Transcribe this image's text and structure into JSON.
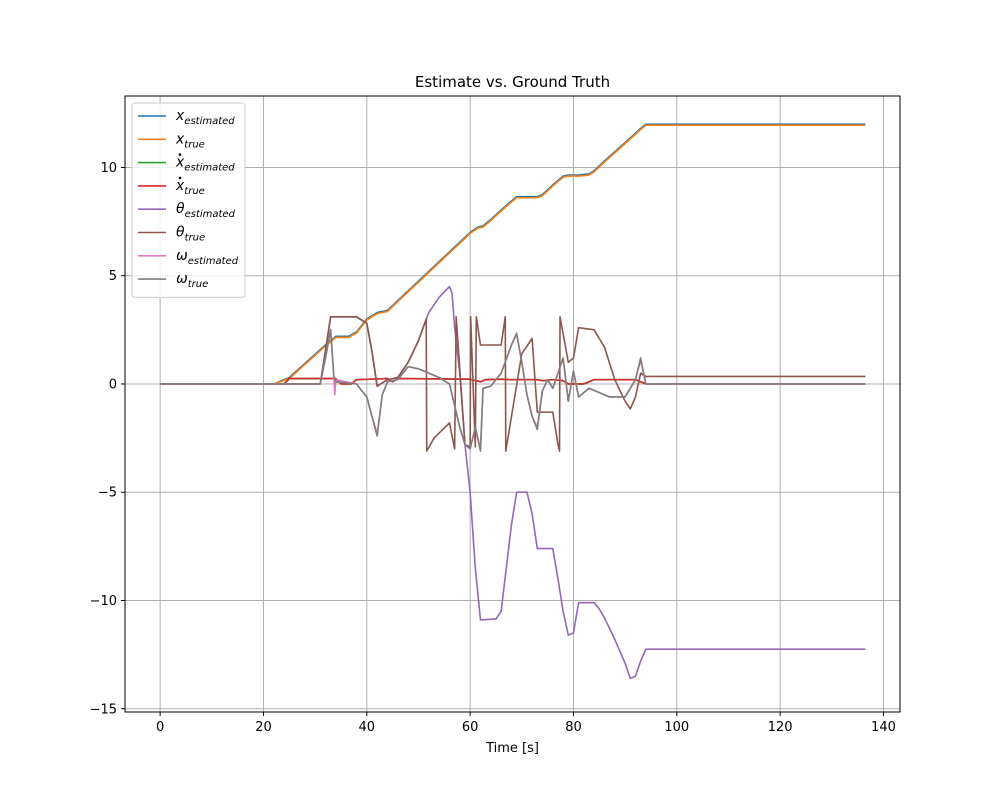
{
  "chart_data": {
    "type": "line",
    "title": "Estimate vs. Ground Truth",
    "xlabel": "Time [s]",
    "ylabel": "",
    "xlim": [
      -6.8,
      143.2
    ],
    "ylim": [
      -15.15,
      13.3
    ],
    "xticks": [
      0,
      20,
      40,
      60,
      80,
      100,
      120,
      140
    ],
    "xtick_labels": [
      "0",
      "20",
      "40",
      "60",
      "80",
      "100",
      "120",
      "140"
    ],
    "yticks": [
      -15,
      -10,
      -5,
      0,
      5,
      10
    ],
    "ytick_labels": [
      "−15",
      "−10",
      "−5",
      "0",
      "5",
      "10"
    ],
    "grid": true,
    "legend_position": "top-left",
    "series": [
      {
        "name": "x_estimated",
        "legend_main": "x",
        "legend_dot": false,
        "legend_sub": "estimated",
        "color": "#1f77b4",
        "points": [
          [
            0,
            0
          ],
          [
            22,
            0
          ],
          [
            25,
            0.3
          ],
          [
            32,
            1.8
          ],
          [
            34,
            2.2
          ],
          [
            36.5,
            2.2
          ],
          [
            38,
            2.4
          ],
          [
            40,
            3.0
          ],
          [
            42,
            3.3
          ],
          [
            44,
            3.4
          ],
          [
            48,
            4.3
          ],
          [
            56,
            6.1
          ],
          [
            60,
            7.0
          ],
          [
            61.5,
            7.25
          ],
          [
            62.5,
            7.3
          ],
          [
            64,
            7.6
          ],
          [
            67,
            8.25
          ],
          [
            69,
            8.65
          ],
          [
            70,
            8.65
          ],
          [
            73,
            8.65
          ],
          [
            74,
            8.75
          ],
          [
            76.5,
            9.3
          ],
          [
            78,
            9.6
          ],
          [
            79,
            9.65
          ],
          [
            81,
            9.65
          ],
          [
            83,
            9.7
          ],
          [
            84,
            9.85
          ],
          [
            86,
            10.3
          ],
          [
            90,
            11.15
          ],
          [
            93,
            11.8
          ],
          [
            94,
            12.0
          ],
          [
            136.5,
            12.0
          ]
        ]
      },
      {
        "name": "x_true",
        "legend_main": "x",
        "legend_dot": false,
        "legend_sub": "true",
        "color": "#ff7f0e",
        "points": [
          [
            0,
            0
          ],
          [
            22,
            0
          ],
          [
            25,
            0.25
          ],
          [
            32,
            1.75
          ],
          [
            34,
            2.15
          ],
          [
            36.5,
            2.15
          ],
          [
            38,
            2.35
          ],
          [
            40,
            2.95
          ],
          [
            42,
            3.25
          ],
          [
            44,
            3.35
          ],
          [
            48,
            4.25
          ],
          [
            56,
            6.05
          ],
          [
            60,
            6.95
          ],
          [
            61.5,
            7.2
          ],
          [
            62.5,
            7.25
          ],
          [
            64,
            7.55
          ],
          [
            67,
            8.2
          ],
          [
            69,
            8.6
          ],
          [
            70,
            8.6
          ],
          [
            73,
            8.6
          ],
          [
            74,
            8.7
          ],
          [
            76.5,
            9.25
          ],
          [
            78,
            9.55
          ],
          [
            79,
            9.6
          ],
          [
            81,
            9.6
          ],
          [
            83,
            9.65
          ],
          [
            84,
            9.8
          ],
          [
            86,
            10.25
          ],
          [
            90,
            11.1
          ],
          [
            93,
            11.75
          ],
          [
            94,
            11.95
          ],
          [
            136.5,
            11.95
          ]
        ]
      },
      {
        "name": "xdot_estimated",
        "legend_main": "x",
        "legend_dot": true,
        "legend_sub": "estimated",
        "color": "#2ca02c",
        "points": [
          [
            0,
            0
          ],
          [
            24,
            0
          ],
          [
            25,
            0.25
          ],
          [
            34,
            0.25
          ],
          [
            35,
            0
          ],
          [
            37,
            0
          ],
          [
            38,
            0.2
          ],
          [
            44,
            0.25
          ],
          [
            45,
            0.1
          ],
          [
            46,
            0.25
          ],
          [
            60,
            0.22
          ],
          [
            62,
            0.1
          ],
          [
            63,
            0.2
          ],
          [
            66,
            0.22
          ],
          [
            68,
            0.2
          ],
          [
            69,
            0.2
          ],
          [
            73,
            0.2
          ],
          [
            74,
            0.15
          ],
          [
            76,
            0.2
          ],
          [
            78,
            0.15
          ],
          [
            79,
            0
          ],
          [
            82,
            0
          ],
          [
            84,
            0.2
          ],
          [
            92,
            0.2
          ],
          [
            94,
            0
          ],
          [
            136.5,
            0
          ]
        ]
      },
      {
        "name": "xdot_true",
        "legend_main": "x",
        "legend_dot": true,
        "legend_sub": "true",
        "color": "#d62728",
        "points": [
          [
            0,
            0
          ],
          [
            24,
            0
          ],
          [
            25,
            0.25
          ],
          [
            34,
            0.25
          ],
          [
            35,
            0
          ],
          [
            37,
            0
          ],
          [
            38,
            0.2
          ],
          [
            44,
            0.25
          ],
          [
            45,
            0.1
          ],
          [
            46,
            0.25
          ],
          [
            60,
            0.22
          ],
          [
            62,
            0.1
          ],
          [
            63,
            0.2
          ],
          [
            66,
            0.22
          ],
          [
            68,
            0.2
          ],
          [
            69,
            0.2
          ],
          [
            73,
            0.2
          ],
          [
            74,
            0.15
          ],
          [
            76,
            0.2
          ],
          [
            78,
            0.15
          ],
          [
            79,
            0
          ],
          [
            82,
            0
          ],
          [
            84,
            0.2
          ],
          [
            92,
            0.2
          ],
          [
            94,
            0
          ],
          [
            136.5,
            0
          ]
        ]
      },
      {
        "name": "theta_estimated",
        "legend_main": "θ",
        "legend_dot": false,
        "legend_sub": "estimated",
        "color": "#9467bd",
        "points": [
          [
            0,
            0
          ],
          [
            31,
            0
          ],
          [
            33,
            3.1
          ],
          [
            38,
            3.1
          ],
          [
            40,
            2.8
          ],
          [
            41,
            1.5
          ],
          [
            42,
            -0.1
          ],
          [
            44,
            0.2
          ],
          [
            46,
            0.3
          ],
          [
            48,
            1.0
          ],
          [
            50,
            2.0
          ],
          [
            52,
            3.3
          ],
          [
            54,
            4.0
          ],
          [
            56,
            4.5
          ],
          [
            56.5,
            4.2
          ],
          [
            57,
            2.6
          ],
          [
            58,
            0.5
          ],
          [
            59,
            -2.8
          ],
          [
            60,
            -5.0
          ],
          [
            61,
            -8.5
          ],
          [
            62,
            -10.9
          ],
          [
            65,
            -10.85
          ],
          [
            66,
            -10.5
          ],
          [
            67,
            -8.5
          ],
          [
            68,
            -6.5
          ],
          [
            69,
            -5.0
          ],
          [
            71,
            -5.0
          ],
          [
            72,
            -6.0
          ],
          [
            73,
            -7.6
          ],
          [
            76,
            -7.6
          ],
          [
            77,
            -9.0
          ],
          [
            78,
            -10.5
          ],
          [
            79,
            -11.6
          ],
          [
            80,
            -11.5
          ],
          [
            81,
            -10.1
          ],
          [
            84,
            -10.1
          ],
          [
            85,
            -10.4
          ],
          [
            86,
            -10.8
          ],
          [
            88,
            -11.8
          ],
          [
            90,
            -12.9
          ],
          [
            91,
            -13.6
          ],
          [
            92,
            -13.5
          ],
          [
            93,
            -12.8
          ],
          [
            94,
            -12.25
          ],
          [
            136.5,
            -12.25
          ]
        ]
      },
      {
        "name": "theta_true",
        "legend_main": "θ",
        "legend_dot": false,
        "legend_sub": "true",
        "color": "#8c564b",
        "points": [
          [
            0,
            0
          ],
          [
            31,
            0
          ],
          [
            33,
            3.1
          ],
          [
            38,
            3.1
          ],
          [
            40,
            2.8
          ],
          [
            41,
            1.5
          ],
          [
            42,
            -0.1
          ],
          [
            44,
            0.2
          ],
          [
            46,
            0.3
          ],
          [
            48,
            1.0
          ],
          [
            50,
            2.0
          ],
          [
            51.5,
            3.0
          ],
          [
            51.6,
            -3.1
          ],
          [
            53,
            -2.5
          ],
          [
            56,
            -1.8
          ],
          [
            57,
            -3.0
          ],
          [
            57.3,
            3.1
          ],
          [
            59,
            -2.8
          ],
          [
            60,
            -2.9
          ],
          [
            60.1,
            3.1
          ],
          [
            61,
            -2.9
          ],
          [
            61.2,
            3.1
          ],
          [
            62,
            1.8
          ],
          [
            66,
            1.8
          ],
          [
            66.8,
            3.1
          ],
          [
            66.9,
            -3.1
          ],
          [
            68,
            -1.5
          ],
          [
            70,
            1.4
          ],
          [
            72,
            2.1
          ],
          [
            73,
            -1.3
          ],
          [
            76,
            -1.3
          ],
          [
            77,
            -2.8
          ],
          [
            77.3,
            -3.1
          ],
          [
            77.4,
            3.1
          ],
          [
            79,
            1.0
          ],
          [
            80,
            1.2
          ],
          [
            81,
            2.6
          ],
          [
            84,
            2.5
          ],
          [
            86,
            1.7
          ],
          [
            88,
            0.2
          ],
          [
            90,
            -0.8
          ],
          [
            91,
            -1.15
          ],
          [
            92,
            -0.6
          ],
          [
            93,
            0.5
          ],
          [
            94,
            0.35
          ],
          [
            136.5,
            0.35
          ]
        ]
      },
      {
        "name": "omega_estimated",
        "legend_main": "ω",
        "legend_dot": false,
        "legend_sub": "estimated",
        "color": "#e377c2",
        "points": [
          [
            0,
            0
          ],
          [
            31,
            0
          ],
          [
            32,
            1.2
          ],
          [
            33,
            2.5
          ],
          [
            33.5,
            0.8
          ],
          [
            33.8,
            -0.5
          ],
          [
            34,
            0.2
          ],
          [
            38,
            0
          ],
          [
            40,
            -0.6
          ],
          [
            41,
            -1.5
          ],
          [
            42,
            -2.3
          ],
          [
            43,
            -0.5
          ],
          [
            44,
            0.1
          ],
          [
            46,
            0.2
          ],
          [
            48,
            0.8
          ],
          [
            50,
            0.7
          ],
          [
            52,
            0.5
          ],
          [
            54,
            0.3
          ],
          [
            56,
            0
          ],
          [
            57,
            -1.0
          ],
          [
            58,
            -2.0
          ],
          [
            59,
            -2.8
          ],
          [
            60,
            -3.0
          ],
          [
            61,
            -2.0
          ],
          [
            62,
            -3.0
          ],
          [
            62.5,
            -0.2
          ],
          [
            64,
            -0.1
          ],
          [
            66,
            0.5
          ],
          [
            68,
            1.8
          ],
          [
            69,
            2.3
          ],
          [
            70,
            1.0
          ],
          [
            71,
            -0.5
          ],
          [
            72,
            -1.5
          ],
          [
            73,
            -2.0
          ],
          [
            74,
            -0.3
          ],
          [
            75,
            0.2
          ],
          [
            76,
            -0.2
          ],
          [
            78,
            1.2
          ],
          [
            79,
            -0.8
          ],
          [
            80,
            0.6
          ],
          [
            81,
            -0.6
          ],
          [
            83,
            -0.2
          ],
          [
            85,
            -0.4
          ],
          [
            87,
            -0.6
          ],
          [
            90,
            -0.6
          ],
          [
            92,
            0.2
          ],
          [
            93,
            1.1
          ],
          [
            94,
            0
          ],
          [
            136.5,
            0
          ]
        ]
      },
      {
        "name": "omega_true",
        "legend_main": "ω",
        "legend_dot": false,
        "legend_sub": "true",
        "color": "#7f7f7f",
        "points": [
          [
            0,
            0
          ],
          [
            31,
            0
          ],
          [
            32,
            1.2
          ],
          [
            33,
            2.5
          ],
          [
            33.6,
            0.4
          ],
          [
            34,
            0.1
          ],
          [
            38,
            0
          ],
          [
            40,
            -0.6
          ],
          [
            41,
            -1.5
          ],
          [
            42,
            -2.4
          ],
          [
            43,
            -0.5
          ],
          [
            44,
            0.1
          ],
          [
            46,
            0.2
          ],
          [
            48,
            0.8
          ],
          [
            50,
            0.7
          ],
          [
            52,
            0.5
          ],
          [
            54,
            0.3
          ],
          [
            56,
            0
          ],
          [
            57,
            -1.0
          ],
          [
            58,
            -2.0
          ],
          [
            59,
            -2.8
          ],
          [
            60,
            -3.0
          ],
          [
            61,
            -2.0
          ],
          [
            62,
            -3.1
          ],
          [
            62.5,
            -0.2
          ],
          [
            64,
            -0.1
          ],
          [
            66,
            0.5
          ],
          [
            68,
            1.8
          ],
          [
            69,
            2.35
          ],
          [
            70,
            1.0
          ],
          [
            71,
            -0.5
          ],
          [
            72,
            -1.5
          ],
          [
            73,
            -2.1
          ],
          [
            74,
            -0.3
          ],
          [
            75,
            0.2
          ],
          [
            76,
            -0.2
          ],
          [
            78,
            1.2
          ],
          [
            79,
            -0.8
          ],
          [
            80,
            0.6
          ],
          [
            81,
            -0.6
          ],
          [
            83,
            -0.2
          ],
          [
            85,
            -0.4
          ],
          [
            87,
            -0.6
          ],
          [
            90,
            -0.6
          ],
          [
            92,
            0.2
          ],
          [
            93,
            1.2
          ],
          [
            94,
            0
          ],
          [
            136.5,
            0
          ]
        ]
      }
    ]
  }
}
